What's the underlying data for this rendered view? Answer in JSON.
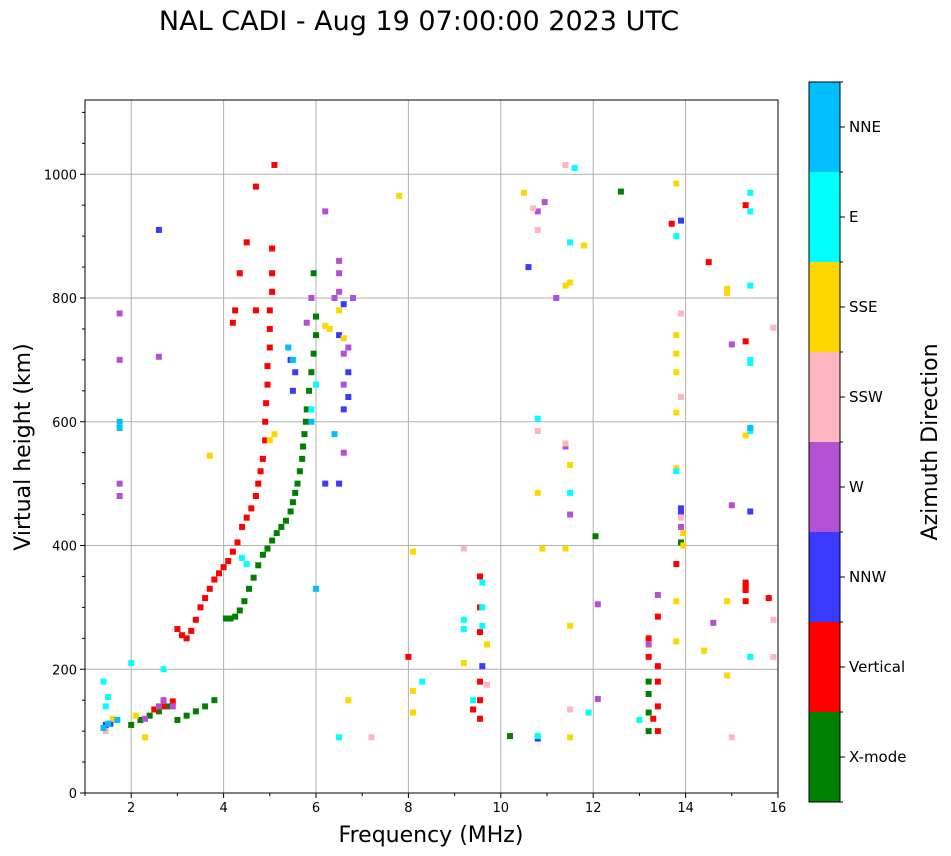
{
  "chart_data": {
    "type": "scatter",
    "title": "NAL CADI - Aug 19 07:00:00 2023 UTC",
    "xlabel": "Frequency (MHz)",
    "ylabel": "Virtual height (km)",
    "xlim": [
      1,
      16
    ],
    "ylim": [
      0,
      1120
    ],
    "xticks": [
      2,
      4,
      6,
      8,
      10,
      12,
      14,
      16
    ],
    "yticks": [
      0,
      200,
      400,
      600,
      800,
      1000
    ],
    "grid": true,
    "colorbar": {
      "label": "Azimuth Direction",
      "categories": [
        "X-mode",
        "Vertical",
        "NNW",
        "W",
        "SSW",
        "SSE",
        "E",
        "NNE"
      ],
      "colors": [
        "#008000",
        "#ff0000",
        "#3a3aff",
        "#b450d2",
        "#ffb6c1",
        "#ffd700",
        "#00ffff",
        "#00bfff"
      ]
    },
    "series": [
      {
        "name": "X-mode",
        "points": [
          [
            2.0,
            110
          ],
          [
            2.2,
            118
          ],
          [
            2.4,
            125
          ],
          [
            2.6,
            132
          ],
          [
            2.8,
            140
          ],
          [
            3.0,
            118
          ],
          [
            3.2,
            125
          ],
          [
            3.4,
            132
          ],
          [
            3.6,
            140
          ],
          [
            3.8,
            150
          ],
          [
            4.05,
            282
          ],
          [
            4.15,
            282
          ],
          [
            4.25,
            285
          ],
          [
            4.35,
            295
          ],
          [
            4.45,
            310
          ],
          [
            4.55,
            330
          ],
          [
            4.65,
            348
          ],
          [
            4.75,
            368
          ],
          [
            4.85,
            385
          ],
          [
            4.95,
            395
          ],
          [
            5.05,
            408
          ],
          [
            5.15,
            420
          ],
          [
            5.25,
            430
          ],
          [
            5.35,
            440
          ],
          [
            5.45,
            455
          ],
          [
            5.5,
            470
          ],
          [
            5.55,
            485
          ],
          [
            5.6,
            500
          ],
          [
            5.65,
            520
          ],
          [
            5.7,
            540
          ],
          [
            5.72,
            560
          ],
          [
            5.75,
            580
          ],
          [
            5.78,
            600
          ],
          [
            5.8,
            620
          ],
          [
            5.85,
            650
          ],
          [
            5.9,
            680
          ],
          [
            5.95,
            710
          ],
          [
            6.0,
            740
          ],
          [
            6.0,
            770
          ],
          [
            5.95,
            840
          ],
          [
            10.2,
            92
          ],
          [
            12.6,
            972
          ],
          [
            13.2,
            180
          ],
          [
            13.2,
            160
          ],
          [
            13.2,
            130
          ],
          [
            13.2,
            100
          ],
          [
            12.05,
            415
          ],
          [
            13.9,
            405
          ]
        ]
      },
      {
        "name": "Vertical",
        "points": [
          [
            2.5,
            135
          ],
          [
            2.7,
            140
          ],
          [
            2.9,
            148
          ],
          [
            3.0,
            265
          ],
          [
            3.1,
            255
          ],
          [
            3.2,
            250
          ],
          [
            3.3,
            262
          ],
          [
            3.4,
            280
          ],
          [
            3.5,
            300
          ],
          [
            3.6,
            315
          ],
          [
            3.7,
            330
          ],
          [
            3.8,
            345
          ],
          [
            3.9,
            355
          ],
          [
            4.0,
            365
          ],
          [
            4.1,
            375
          ],
          [
            4.2,
            390
          ],
          [
            4.3,
            405
          ],
          [
            4.4,
            430
          ],
          [
            4.5,
            445
          ],
          [
            4.6,
            460
          ],
          [
            4.7,
            480
          ],
          [
            4.75,
            500
          ],
          [
            4.8,
            520
          ],
          [
            4.85,
            540
          ],
          [
            4.9,
            570
          ],
          [
            4.9,
            600
          ],
          [
            4.92,
            630
          ],
          [
            4.95,
            660
          ],
          [
            4.95,
            690
          ],
          [
            5.0,
            720
          ],
          [
            5.0,
            750
          ],
          [
            5.0,
            780
          ],
          [
            5.05,
            810
          ],
          [
            5.05,
            840
          ],
          [
            5.05,
            880
          ],
          [
            5.1,
            1015
          ],
          [
            4.35,
            840
          ],
          [
            4.25,
            780
          ],
          [
            4.2,
            760
          ],
          [
            4.5,
            890
          ],
          [
            4.7,
            980
          ],
          [
            4.7,
            780
          ],
          [
            8.0,
            220
          ],
          [
            9.55,
            350
          ],
          [
            9.55,
            300
          ],
          [
            9.55,
            260
          ],
          [
            9.55,
            180
          ],
          [
            9.55,
            150
          ],
          [
            9.55,
            120
          ],
          [
            9.4,
            135
          ],
          [
            13.2,
            250
          ],
          [
            13.2,
            220
          ],
          [
            13.4,
            285
          ],
          [
            13.4,
            205
          ],
          [
            13.4,
            180
          ],
          [
            13.4,
            140
          ],
          [
            13.4,
            100
          ],
          [
            13.3,
            120
          ],
          [
            13.8,
            370
          ],
          [
            13.7,
            920
          ],
          [
            14.5,
            858
          ],
          [
            15.3,
            950
          ],
          [
            15.3,
            730
          ],
          [
            15.3,
            340
          ],
          [
            15.3,
            335
          ],
          [
            15.3,
            328
          ],
          [
            15.3,
            310
          ],
          [
            15.8,
            315
          ]
        ]
      },
      {
        "name": "NNW",
        "points": [
          [
            1.45,
            110
          ],
          [
            1.55,
            112
          ],
          [
            5.5,
            650
          ],
          [
            5.55,
            680
          ],
          [
            5.45,
            700
          ],
          [
            6.5,
            740
          ],
          [
            6.7,
            680
          ],
          [
            6.7,
            640
          ],
          [
            6.6,
            620
          ],
          [
            6.6,
            790
          ],
          [
            6.5,
            500
          ],
          [
            6.2,
            500
          ],
          [
            10.8,
            88
          ],
          [
            10.6,
            850
          ],
          [
            13.9,
            925
          ],
          [
            13.9,
            460
          ],
          [
            13.9,
            455
          ],
          [
            15.4,
            455
          ],
          [
            9.6,
            205
          ],
          [
            2.6,
            910
          ]
        ]
      },
      {
        "name": "W",
        "points": [
          [
            2.3,
            120
          ],
          [
            2.6,
            140
          ],
          [
            2.7,
            150
          ],
          [
            2.9,
            140
          ],
          [
            6.5,
            860
          ],
          [
            6.5,
            840
          ],
          [
            6.5,
            810
          ],
          [
            6.8,
            800
          ],
          [
            6.7,
            720
          ],
          [
            6.6,
            710
          ],
          [
            6.6,
            660
          ],
          [
            5.8,
            760
          ],
          [
            5.9,
            800
          ],
          [
            6.2,
            940
          ],
          [
            6.4,
            800
          ],
          [
            6.6,
            550
          ],
          [
            10.8,
            940
          ],
          [
            10.95,
            955
          ],
          [
            11.2,
            800
          ],
          [
            11.4,
            560
          ],
          [
            11.5,
            450
          ],
          [
            12.1,
            305
          ],
          [
            12.1,
            152
          ],
          [
            13.9,
            430
          ],
          [
            13.2,
            240
          ],
          [
            13.4,
            320
          ],
          [
            15.0,
            725
          ],
          [
            15.0,
            465
          ],
          [
            14.6,
            275
          ],
          [
            1.75,
            700
          ],
          [
            1.75,
            500
          ],
          [
            1.75,
            480
          ],
          [
            1.75,
            775
          ],
          [
            2.6,
            705
          ]
        ]
      },
      {
        "name": "SSW",
        "points": [
          [
            1.45,
            100
          ],
          [
            9.2,
            395
          ],
          [
            10.7,
            945
          ],
          [
            10.8,
            910
          ],
          [
            10.8,
            585
          ],
          [
            11.4,
            565
          ],
          [
            11.4,
            1015
          ],
          [
            13.9,
            775
          ],
          [
            13.9,
            640
          ],
          [
            13.9,
            445
          ],
          [
            15.0,
            90
          ],
          [
            15.9,
            752
          ],
          [
            15.9,
            280
          ],
          [
            15.9,
            220
          ],
          [
            11.5,
            135
          ],
          [
            7.2,
            90
          ],
          [
            9.7,
            175
          ]
        ]
      },
      {
        "name": "SSE",
        "points": [
          [
            1.6,
            120
          ],
          [
            2.1,
            125
          ],
          [
            2.3,
            90
          ],
          [
            3.7,
            545
          ],
          [
            6.2,
            755
          ],
          [
            6.3,
            750
          ],
          [
            6.5,
            780
          ],
          [
            6.6,
            735
          ],
          [
            5.0,
            570
          ],
          [
            5.1,
            580
          ],
          [
            7.8,
            965
          ],
          [
            8.1,
            390
          ],
          [
            8.1,
            165
          ],
          [
            8.1,
            130
          ],
          [
            9.2,
            210
          ],
          [
            9.7,
            240
          ],
          [
            10.5,
            970
          ],
          [
            10.8,
            485
          ],
          [
            10.9,
            395
          ],
          [
            11.4,
            395
          ],
          [
            11.4,
            820
          ],
          [
            11.5,
            825
          ],
          [
            11.5,
            530
          ],
          [
            11.5,
            270
          ],
          [
            11.5,
            90
          ],
          [
            11.8,
            885
          ],
          [
            13.8,
            985
          ],
          [
            13.8,
            740
          ],
          [
            13.8,
            710
          ],
          [
            13.8,
            680
          ],
          [
            13.8,
            615
          ],
          [
            13.8,
            525
          ],
          [
            13.8,
            310
          ],
          [
            13.8,
            245
          ],
          [
            13.95,
            420
          ],
          [
            13.95,
            400
          ],
          [
            14.4,
            230
          ],
          [
            14.9,
            808
          ],
          [
            14.9,
            815
          ],
          [
            14.9,
            310
          ],
          [
            14.9,
            190
          ],
          [
            15.3,
            578
          ],
          [
            6.7,
            150
          ]
        ]
      },
      {
        "name": "E",
        "points": [
          [
            1.4,
            180
          ],
          [
            1.45,
            140
          ],
          [
            2.0,
            210
          ],
          [
            2.7,
            200
          ],
          [
            4.4,
            380
          ],
          [
            4.5,
            370
          ],
          [
            9.2,
            280
          ],
          [
            9.2,
            265
          ],
          [
            9.6,
            300
          ],
          [
            9.6,
            270
          ],
          [
            9.6,
            340
          ],
          [
            9.4,
            150
          ],
          [
            10.8,
            605
          ],
          [
            10.8,
            92
          ],
          [
            11.5,
            485
          ],
          [
            11.5,
            890
          ],
          [
            11.6,
            1010
          ],
          [
            11.9,
            130
          ],
          [
            13.0,
            118
          ],
          [
            13.8,
            900
          ],
          [
            13.8,
            520
          ],
          [
            15.4,
            970
          ],
          [
            15.4,
            940
          ],
          [
            15.4,
            820
          ],
          [
            15.4,
            700
          ],
          [
            15.4,
            695
          ],
          [
            15.4,
            585
          ],
          [
            15.4,
            220
          ],
          [
            6.0,
            660
          ],
          [
            5.9,
            620
          ],
          [
            6.5,
            90
          ],
          [
            8.3,
            180
          ],
          [
            1.5,
            155
          ]
        ]
      },
      {
        "name": "NNE",
        "points": [
          [
            1.4,
            105
          ],
          [
            1.5,
            112
          ],
          [
            1.7,
            118
          ],
          [
            1.75,
            600
          ],
          [
            1.75,
            590
          ],
          [
            5.4,
            720
          ],
          [
            5.5,
            700
          ],
          [
            5.9,
            600
          ],
          [
            6.0,
            330
          ],
          [
            6.4,
            580
          ],
          [
            15.4,
            590
          ]
        ]
      }
    ]
  }
}
